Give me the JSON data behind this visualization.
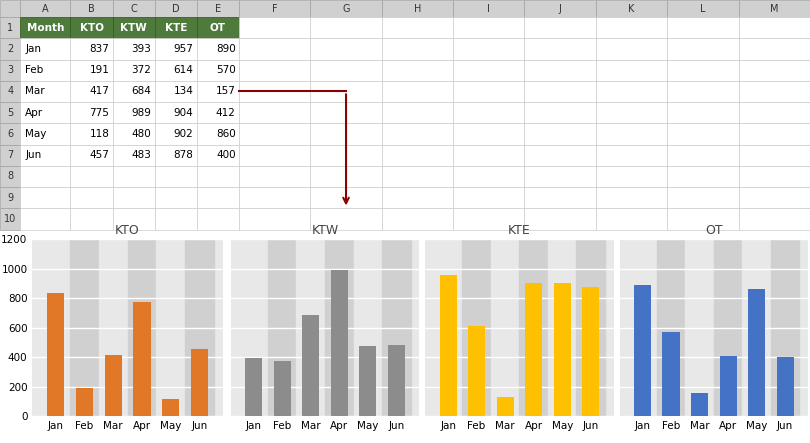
{
  "months": [
    "Jan",
    "Feb",
    "Mar",
    "Apr",
    "May",
    "Jun"
  ],
  "series": {
    "KTO": [
      837,
      191,
      417,
      775,
      118,
      457
    ],
    "KTW": [
      393,
      372,
      684,
      989,
      480,
      483
    ],
    "KTE": [
      957,
      614,
      134,
      904,
      902,
      878
    ],
    "OT": [
      890,
      570,
      157,
      412,
      860,
      400
    ]
  },
  "colors": {
    "KTO": "#E07828",
    "KTW": "#8C8C8C",
    "KTE": "#FFC000",
    "OT": "#4472C4"
  },
  "header_bg": "#4E7A3C",
  "header_fg": "#FFFFFF",
  "cell_fg": "#000000",
  "col_headers": [
    "A",
    "B",
    "C",
    "D",
    "E",
    "F",
    "G",
    "H",
    "I",
    "J",
    "K",
    "L",
    "M"
  ],
  "row_labels": [
    "Month",
    "KTO",
    "KTW",
    "KTE",
    "OT"
  ],
  "table_data": [
    [
      "Jan",
      837,
      393,
      957,
      890
    ],
    [
      "Feb",
      191,
      372,
      614,
      570
    ],
    [
      "Mar",
      417,
      684,
      134,
      157
    ],
    [
      "Apr",
      775,
      989,
      904,
      412
    ],
    [
      "May",
      118,
      480,
      902,
      860
    ],
    [
      "Jun",
      457,
      483,
      878,
      400
    ]
  ],
  "ylim": [
    0,
    1200
  ],
  "yticks": [
    0,
    200,
    400,
    600,
    800,
    1000,
    1200
  ],
  "chart_bg": "#E8E8E8",
  "alt_col_bg": "#D0D0D0",
  "grid_color": "#FFFFFF",
  "arrow_color": "#8B0000",
  "excel_bg": "#FFFFFF",
  "col_header_bg": "#D0D0D0",
  "row_num_bg": "#D0D0D0",
  "title_fontsize": 9,
  "tick_fontsize": 7.5
}
